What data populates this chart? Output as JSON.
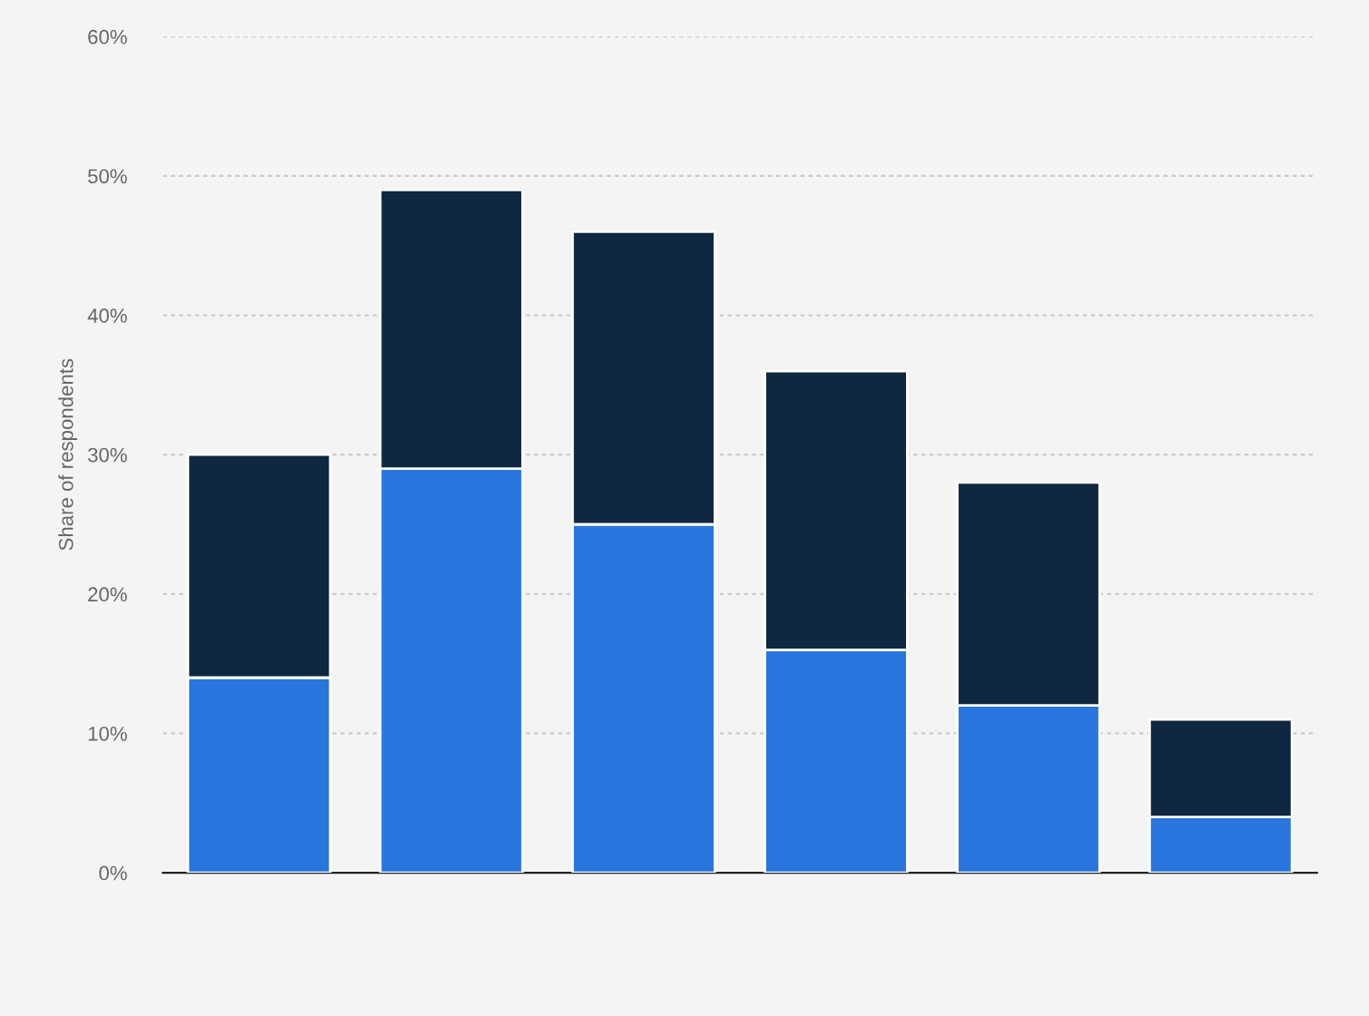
{
  "chart_data": {
    "type": "bar",
    "stacked": true,
    "ylabel": "Share of respondents",
    "categories": [
      null,
      null,
      null,
      null,
      null,
      null
    ],
    "series": [
      {
        "color": "#2876dd",
        "values": [
          14,
          29,
          25,
          16,
          12,
          4
        ]
      },
      {
        "color": "#0f2740",
        "values": [
          16,
          20,
          21,
          20,
          16,
          7
        ]
      }
    ],
    "ylim": [
      0,
      60
    ],
    "yticks": [
      {
        "value": 0,
        "label": "0%"
      },
      {
        "value": 10,
        "label": "10%"
      },
      {
        "value": 20,
        "label": "20%"
      },
      {
        "value": 30,
        "label": "30%"
      },
      {
        "value": 40,
        "label": "40%"
      },
      {
        "value": 50,
        "label": "50%"
      },
      {
        "value": 60,
        "label": "60%"
      }
    ],
    "grid": "y"
  }
}
